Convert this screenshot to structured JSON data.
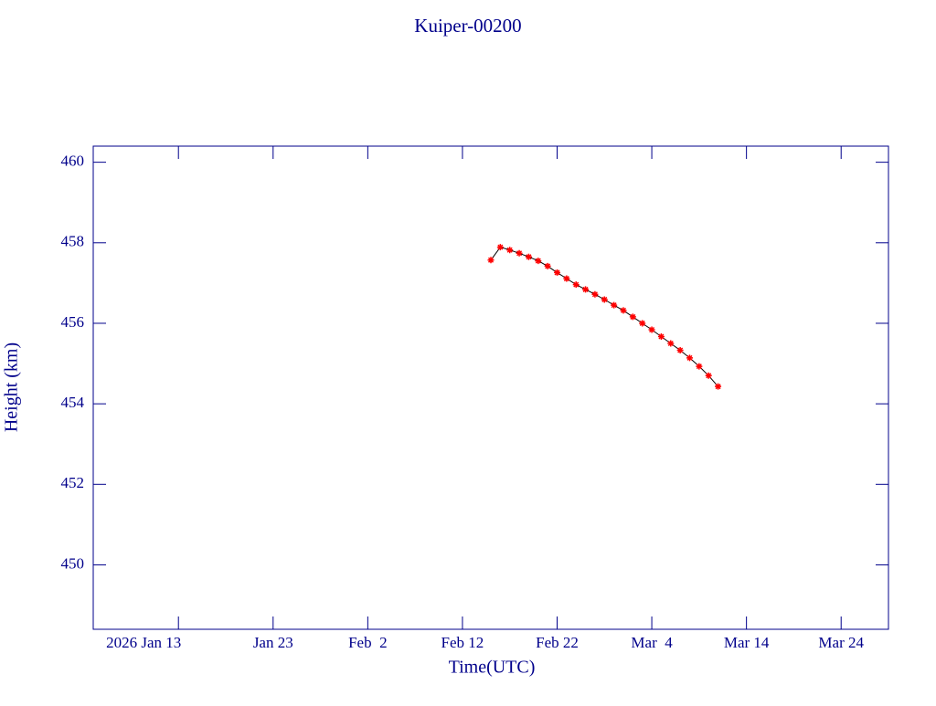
{
  "chart_data": {
    "type": "line",
    "title": "Kuiper-00200",
    "x_label": "Time(UTC)",
    "y_label": "Height (km)",
    "x": [
      "2026-02-15",
      "2026-02-16",
      "2026-02-17",
      "2026-02-18",
      "2026-02-19",
      "2026-02-20",
      "2026-02-21",
      "2026-02-22",
      "2026-02-23",
      "2026-02-24",
      "2026-02-25",
      "2026-02-26",
      "2026-02-27",
      "2026-02-28",
      "2026-03-01",
      "2026-03-02",
      "2026-03-03",
      "2026-03-04",
      "2026-03-05",
      "2026-03-06",
      "2026-03-07",
      "2026-03-08",
      "2026-03-09",
      "2026-03-10",
      "2026-03-11"
    ],
    "values": [
      457.57,
      457.89,
      457.82,
      457.74,
      457.65,
      457.55,
      457.42,
      457.26,
      457.11,
      456.96,
      456.84,
      456.72,
      456.59,
      456.45,
      456.32,
      456.16,
      456.0,
      455.84,
      455.67,
      455.5,
      455.33,
      455.14,
      454.93,
      454.7,
      454.43
    ],
    "color": "#ff0000",
    "line_color": "#000000",
    "xlim": [
      "2026-01-04",
      "2026-03-29"
    ],
    "xticks": [
      {
        "value": "2026-01-13",
        "label": "2026 Jan 13"
      },
      {
        "value": "2026-01-23",
        "label": "Jan 23"
      },
      {
        "value": "2026-02-02",
        "label": "Feb  2"
      },
      {
        "value": "2026-02-12",
        "label": "Feb 12"
      },
      {
        "value": "2026-02-22",
        "label": "Feb 22"
      },
      {
        "value": "2026-03-04",
        "label": "Mar  4"
      },
      {
        "value": "2026-03-14",
        "label": "Mar 14"
      },
      {
        "value": "2026-03-24",
        "label": "Mar 24"
      }
    ],
    "ylim": [
      448.4,
      460.4
    ],
    "yticks": [
      450,
      452,
      454,
      456,
      458,
      460
    ]
  }
}
